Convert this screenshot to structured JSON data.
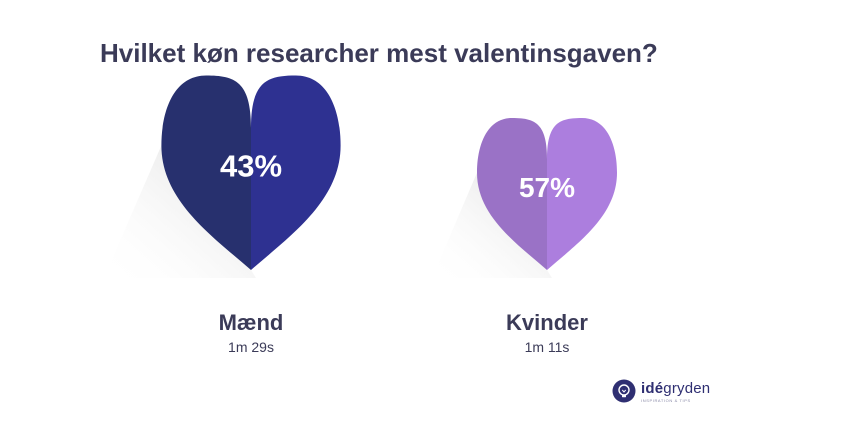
{
  "title": "Hvilket køn researcher mest valentinsgaven?",
  "chart_data": {
    "type": "pie",
    "categories": [
      "Mænd",
      "Kvinder"
    ],
    "values": [
      43,
      57
    ],
    "value_labels": [
      "43%",
      "57%"
    ],
    "times": [
      "1m 29s",
      "1m 11s"
    ],
    "colors": [
      {
        "left": "#27306e",
        "right": "#2e3191"
      },
      {
        "left": "#9a72c6",
        "right": "#ac7ede"
      }
    ]
  },
  "logo": {
    "name_bold": "idé",
    "name_rest": "gryden",
    "tagline": "INSPIRATION & TIPS"
  }
}
